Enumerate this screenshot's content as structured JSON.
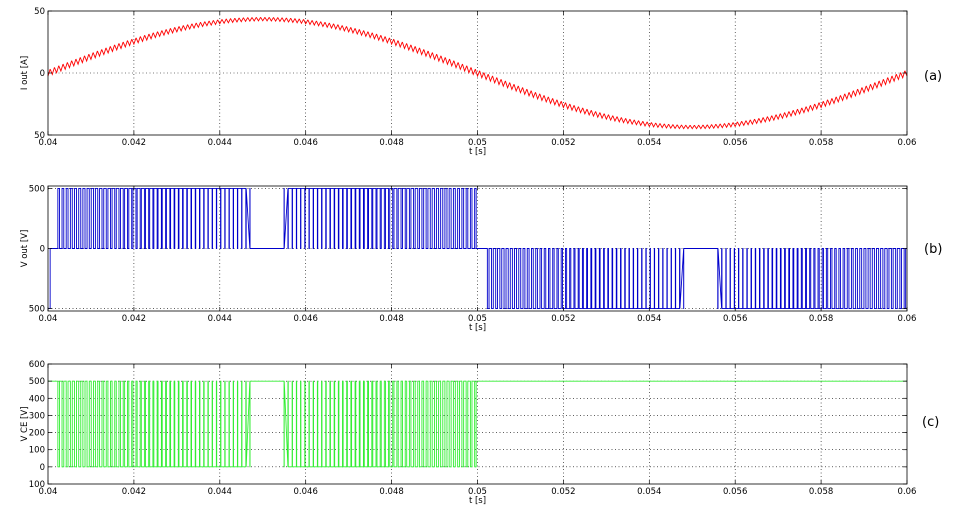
{
  "chart_data": [
    {
      "type": "line",
      "panel_label": "(a)",
      "xlabel": "t [s]",
      "ylabel": "I out [A]",
      "xlim": [
        0.04,
        0.06
      ],
      "ylim": [
        -50,
        50
      ],
      "x_ticks": [
        "0.04",
        "0.042",
        "0.044",
        "0.046",
        "0.048",
        "0.05",
        "0.052",
        "0.054",
        "0.056",
        "0.058",
        "0.06"
      ],
      "y_ticks": [
        {
          "value": 50,
          "label": "50"
        },
        {
          "value": 0,
          "label": "0"
        },
        {
          "value": -50,
          "label": "50"
        }
      ],
      "grid": true,
      "color": "#ff0000",
      "series": [
        {
          "waveform": "sinusoid with switching ripple",
          "amplitude": 43.5,
          "fundamental_hz": 50,
          "zero_crossing_s": 0.04,
          "ripple_peak_to_peak": 5,
          "ripple_cycles_per_period": 200
        }
      ]
    },
    {
      "type": "line",
      "panel_label": "(b)",
      "xlabel": "t [s]",
      "ylabel": "V out [V]",
      "xlim": [
        0.04,
        0.06
      ],
      "ylim": [
        -520,
        520
      ],
      "x_ticks": [
        "0.04",
        "0.042",
        "0.044",
        "0.046",
        "0.048",
        "0.05",
        "0.052",
        "0.054",
        "0.056",
        "0.058",
        "0.06"
      ],
      "y_ticks": [
        {
          "value": 500,
          "label": "500"
        },
        {
          "value": 0,
          "label": "0"
        },
        {
          "value": -500,
          "label": "500"
        }
      ],
      "grid": true,
      "color": "#0000cc",
      "series": [
        {
          "waveform": "unipolar PWM output voltage",
          "levels": [
            0,
            500,
            -500
          ],
          "positive_half_cycle_s": [
            0.04,
            0.05
          ],
          "negative_half_cycle_s": [
            0.05,
            0.06
          ],
          "pulses_per_half_cycle": 100,
          "steady_high_interval_s": [
            0.0447,
            0.0455
          ],
          "steady_low_interval_s": [
            0.0548,
            0.0556
          ]
        }
      ]
    },
    {
      "type": "line",
      "panel_label": "(c)",
      "xlabel": "t [s]",
      "ylabel": "V CE [V]",
      "xlim": [
        0.04,
        0.06
      ],
      "ylim": [
        -100,
        600
      ],
      "x_ticks": [
        "0.04",
        "0.042",
        "0.044",
        "0.046",
        "0.048",
        "0.05",
        "0.052",
        "0.054",
        "0.056",
        "0.058",
        "0.06"
      ],
      "y_ticks": [
        {
          "value": 600,
          "label": "600"
        },
        {
          "value": 500,
          "label": "500"
        },
        {
          "value": 400,
          "label": "400"
        },
        {
          "value": 300,
          "label": "300"
        },
        {
          "value": 200,
          "label": "200"
        },
        {
          "value": 100,
          "label": "100"
        },
        {
          "value": 0,
          "label": "0"
        },
        {
          "value": -100,
          "label": "100"
        }
      ],
      "grid": true,
      "color": "#33ee33",
      "series": [
        {
          "waveform": "switch collector-emitter voltage",
          "levels": [
            0,
            500
          ],
          "switching_interval_s": [
            0.0402,
            0.05
          ],
          "zero_interval_s": [
            0.0447,
            0.0455
          ],
          "steady_level_after_0_05": 500
        }
      ]
    }
  ]
}
